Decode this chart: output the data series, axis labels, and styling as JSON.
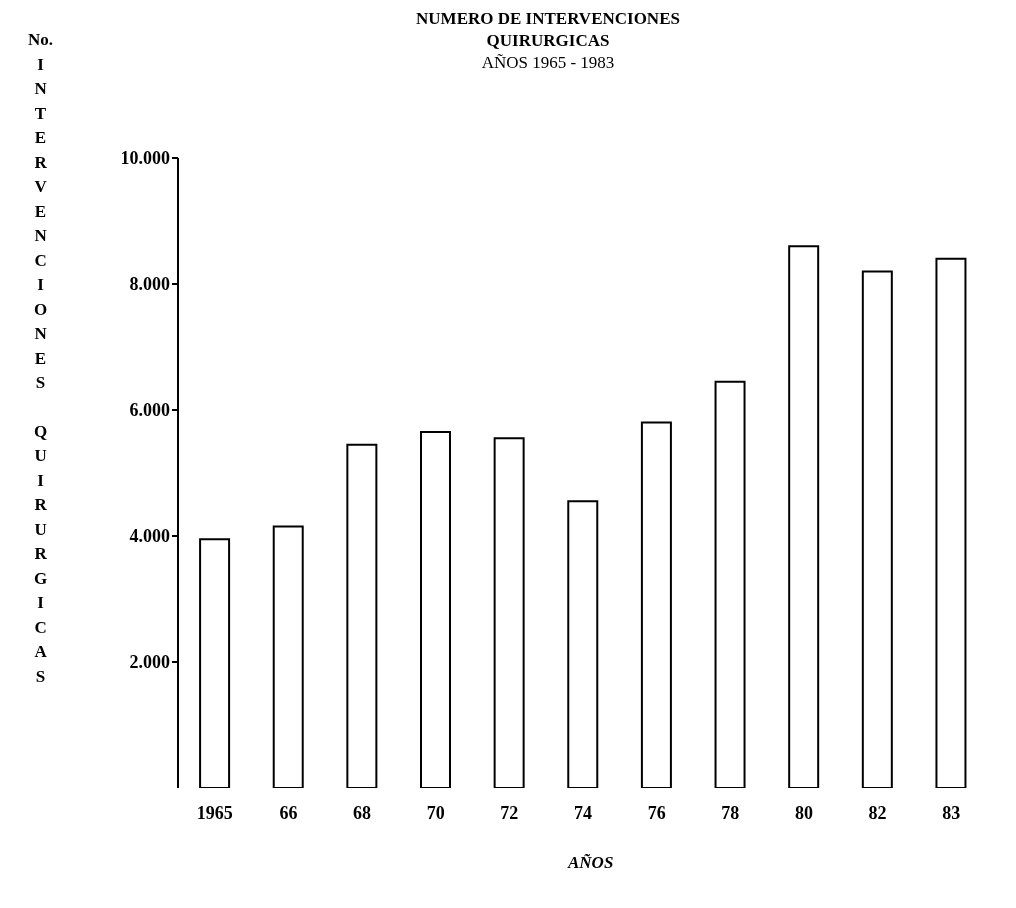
{
  "chart_data": {
    "type": "bar",
    "title": "NUMERO DE INTERVENCIONES\nQUIRURGICAS",
    "subtitle": "AÑOS 1965 - 1983",
    "xlabel": "AÑOS",
    "ylabel": "No. INTERVENCIONES QUIRURGICAS",
    "categories": [
      "1965",
      "66",
      "68",
      "70",
      "72",
      "74",
      "76",
      "78",
      "80",
      "82",
      "83"
    ],
    "values": [
      3950,
      4150,
      5450,
      5650,
      5550,
      4550,
      5800,
      6450,
      8600,
      8200,
      8400
    ],
    "color": "#ffffff",
    "ylim": [
      0,
      10000
    ],
    "yticks": [
      {
        "value": 2000,
        "label": "2.000"
      },
      {
        "value": 4000,
        "label": "4.000"
      },
      {
        "value": 6000,
        "label": "6.000"
      },
      {
        "value": 8000,
        "label": "8.000"
      },
      {
        "value": 10000,
        "label": "10.000"
      }
    ],
    "grid": false,
    "legend": false
  }
}
